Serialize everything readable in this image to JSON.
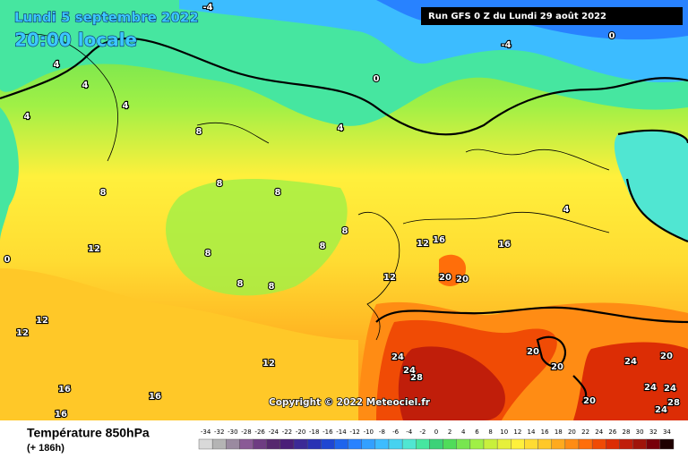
{
  "header": {
    "date": "Lundi 5 septembre 2022",
    "time": "20:00 locale",
    "run": "Run GFS 0 Z du Lundi 29 août 2022",
    "copyright": "Copyright © 2022 Meteociel.fr"
  },
  "footer": {
    "title": "Température 850hPa",
    "subtitle": "(+ 186h)"
  },
  "colorbar": {
    "values": [
      -34,
      -32,
      -30,
      -28,
      -26,
      -24,
      -22,
      -20,
      -18,
      -16,
      -14,
      -12,
      -10,
      -8,
      -6,
      -4,
      -2,
      0,
      2,
      4,
      6,
      8,
      10,
      12,
      14,
      16,
      18,
      20,
      22,
      24,
      26,
      28,
      30,
      32,
      34
    ],
    "colors": [
      "#d9d9d9",
      "#b4b4b4",
      "#9a8aa0",
      "#8a5a96",
      "#6e3c82",
      "#56286e",
      "#4a1e78",
      "#3c2a96",
      "#2a32b4",
      "#1e46d2",
      "#1e64ec",
      "#2882ff",
      "#32a0ff",
      "#3cbcff",
      "#46d2f0",
      "#50e6d2",
      "#46e6a0",
      "#3cd278",
      "#50dc5a",
      "#78e650",
      "#a0f046",
      "#c8f03c",
      "#e6f03c",
      "#fff03c",
      "#ffdc32",
      "#ffc828",
      "#ffaa1e",
      "#ff8c14",
      "#ff6e0a",
      "#f04b05",
      "#dc2d05",
      "#c01e0a",
      "#a0140a",
      "#78000a",
      "#1e0000"
    ]
  },
  "contour_labels": [
    -4,
    -4,
    0,
    0,
    4,
    4,
    4,
    4,
    4,
    4,
    8,
    8,
    8,
    8,
    8,
    8,
    8,
    8,
    8,
    12,
    12,
    12,
    12,
    12,
    12,
    16,
    16,
    16,
    16,
    16,
    20,
    20,
    20,
    20,
    20,
    24,
    24,
    28,
    24,
    20,
    24,
    24,
    28,
    24,
    0
  ]
}
